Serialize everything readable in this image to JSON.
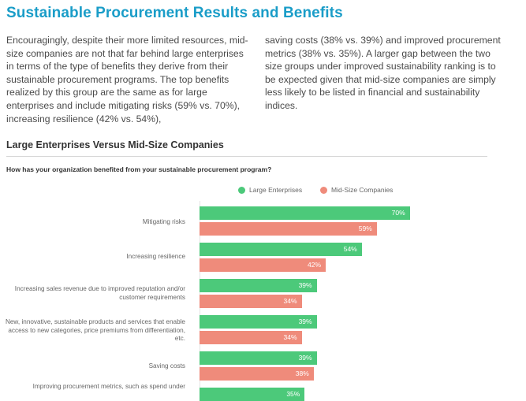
{
  "title": "Sustainable Procurement Results and Benefits",
  "intro_left": "Encouragingly, despite their more limited resources, mid-size companies are not that far behind large enterprises in terms of the type of benefits they derive from their sustainable procurement programs. The top benefits realized by this group are the same as for large enterprises and include mitigating risks (59% vs. 70%), increasing resilience (42% vs. 54%),",
  "intro_right": "saving costs (38% vs. 39%) and improved procurement metrics (38% vs. 35%). A larger gap between the two size groups under improved sustainability ranking is to be expected given that mid-size companies are simply less likely to be listed in financial and sustainability indices.",
  "section_heading": "Large Enterprises Versus Mid-Size Companies",
  "colors": {
    "title": "#1a9dc8",
    "large": "#4cc97a",
    "mid": "#ef8b7b"
  },
  "chart_data": {
    "type": "bar",
    "orientation": "horizontal",
    "title": "How has your organization benefited from your sustainable procurement program?",
    "legend_position": "top-right",
    "categories": [
      "Mitigating risks",
      "Increasing resilience",
      "Increasing sales revenue due to improved reputation and/or customer requirements",
      "New, innovative, sustainable products and services that enable access to new categories, price premiums from differentiation, etc.",
      "Saving costs",
      "Improving procurement metrics, such as spend under"
    ],
    "series": [
      {
        "name": "Large Enterprises",
        "values": [
          70,
          54,
          39,
          39,
          39,
          35
        ],
        "labels": [
          "70%",
          "54%",
          "39%",
          "39%",
          "39%",
          "35%"
        ]
      },
      {
        "name": "Mid-Size Companies",
        "values": [
          59,
          42,
          34,
          34,
          38,
          null
        ],
        "labels": [
          "59%",
          "42%",
          "34%",
          "34%",
          "38%",
          ""
        ]
      }
    ],
    "xlim": [
      0,
      100
    ]
  }
}
